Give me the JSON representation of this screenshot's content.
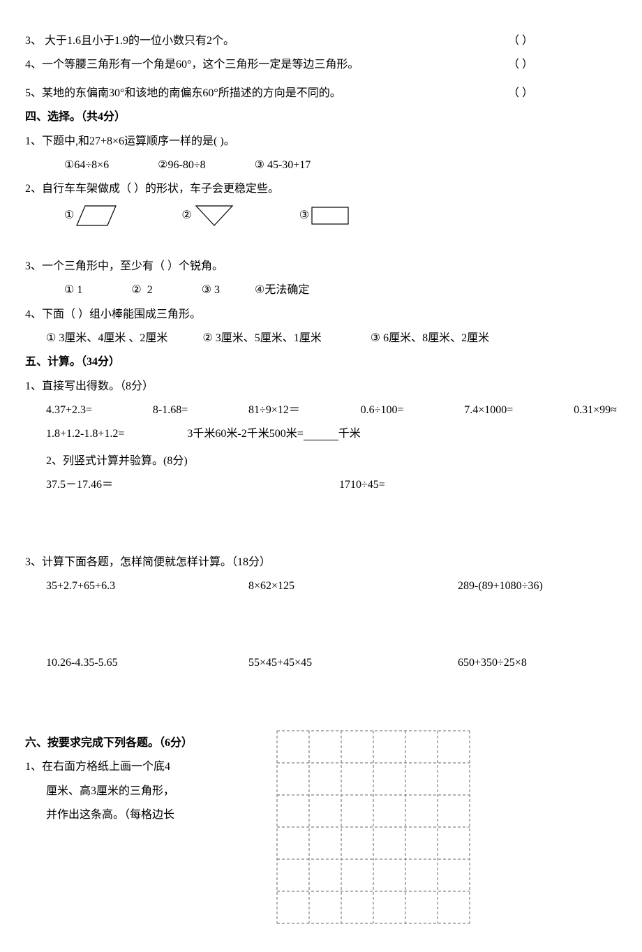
{
  "q3": {
    "text": "3、  大于1.6且小于1.9的一位小数只有2个。",
    "paren": "（    ）"
  },
  "q4": {
    "text": "4、一个等腰三角形有一个角是60°，这个三角形一定是等边三角形。",
    "paren": "（    ）"
  },
  "q5": {
    "text": "5、某地的东偏南30°和该地的南偏东60°所描述的方向是不同的。",
    "paren": "（    ）"
  },
  "sec4": {
    "title": "四、选择。（共4分）",
    "q1": {
      "text": "1、下题中,和27+8×6运算顺序一样的是(         )。",
      "opts": {
        "a": "64÷8×6",
        "b": "96-80÷8",
        "c": "45-30+17"
      }
    },
    "q2": {
      "text_a": "2、自行车车架做成（      ）的形状，车子会更稳定些。",
      "opts": {
        "a": "①",
        "b": "②",
        "c": "③"
      }
    },
    "q3": {
      "text": "3、一个三角形中，至少有（    ）个锐角。",
      "opts": {
        "a": "1",
        "b": "2",
        "c": "3",
        "d": "无法确定"
      }
    },
    "q4": {
      "text": "4、下面（    ）组小棒能围成三角形。",
      "opts": {
        "a": "3厘米、4厘米 、2厘米",
        "b": "3厘米、5厘米、1厘米",
        "c": "6厘米、8厘米、2厘米"
      }
    }
  },
  "sec5": {
    "title": "五、计算。（34分）",
    "p1": {
      "title": "1、直接写出得数。（8分）",
      "row1": {
        "a": "4.37+2.3=",
        "b": "8-1.68=",
        "c": "81÷9×12＝",
        "d": "0.6÷100=",
        "e": "7.4×1000=",
        "f": "0.31×99≈"
      },
      "row2": {
        "a": "1.8+1.2-1.8+1.2=",
        "b": "3千米60米-2千米500米=",
        "c": "千米"
      }
    },
    "p2": {
      "title": "2、列竖式计算并验算。(8分)",
      "a": "37.5－17.46＝",
      "b": "1710÷45="
    },
    "p3": {
      "title": "3、计算下面各题，怎样简便就怎样计算。（18分）",
      "row1": {
        "a": "35+2.7+65+6.3",
        "b": "8×62×125",
        "c": "289-(89+1080÷36)"
      },
      "row2": {
        "a": "10.26-4.35-5.65",
        "b": "55×45+45×45",
        "c": "650+350÷25×8"
      }
    }
  },
  "sec6": {
    "title": "六、按要求完成下列各题。（6分）",
    "q1a": "1、在右面方格纸上画一个底4",
    "q1b": "厘米、高3厘米的三角形，",
    "q1c": "并作出这条高。（每格边长",
    "grid": {
      "cols": 6,
      "rows": 6,
      "cell": 46,
      "border_color": "#666",
      "dash": "4,3"
    }
  },
  "circled": {
    "1": "①",
    "2": "②",
    "3": "③",
    "4": "④"
  }
}
